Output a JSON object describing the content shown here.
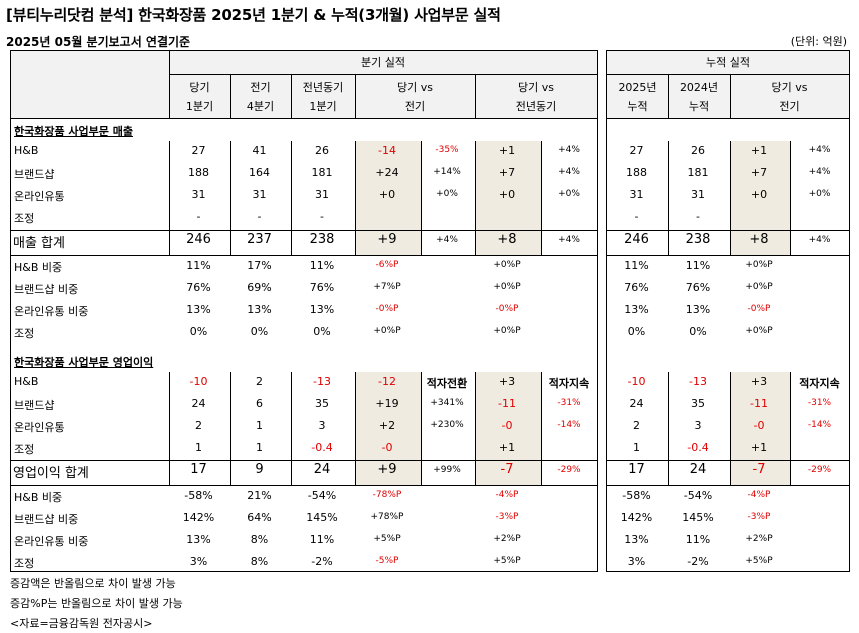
{
  "title": "[뷰티누리닷컴 분석] 한국화장품 2025년 1분기 & 누적(3개월) 사업부문 실적",
  "subtitle": "2025년 05월 분기보고서 연결기준",
  "unit": "(단위: 억원)",
  "groups": {
    "quarter": "분기 실적",
    "cumulative": "누적 실적"
  },
  "headers": {
    "q_cur": "당기\n1분기",
    "q_prev": "전기\n4분기",
    "q_yoy": "전년동기\n1분기",
    "vs_prev": "당기 vs\n전기",
    "vs_yoy": "당기 vs\n전년동기",
    "c_2025": "2025년\n누적",
    "c_2024": "2024년\n누적",
    "c_vs": "당기 vs\n전기"
  },
  "sections": [
    {
      "title": "한국화장품 사업부문 매출",
      "rows": [
        {
          "label": "H&B",
          "cells": [
            "27",
            "41",
            "26",
            "-14",
            "-35%",
            "+1",
            "+4%",
            "27",
            "26",
            "+1",
            "+4%"
          ]
        },
        {
          "label": "브랜드샵",
          "cells": [
            "188",
            "164",
            "181",
            "+24",
            "+14%",
            "+7",
            "+4%",
            "188",
            "181",
            "+7",
            "+4%"
          ]
        },
        {
          "label": "온라인유통",
          "cells": [
            "31",
            "31",
            "31",
            "+0",
            "+0%",
            "+0",
            "+0%",
            "31",
            "31",
            "+0",
            "+0%"
          ]
        },
        {
          "label": "조정",
          "cells": [
            "-",
            "-",
            "-",
            "",
            "",
            "",
            "",
            "-",
            "-",
            "",
            ""
          ]
        }
      ],
      "total": {
        "label": "매출 합계",
        "cells": [
          "246",
          "237",
          "238",
          "+9",
          "+4%",
          "+8",
          "+4%",
          "246",
          "238",
          "+8",
          "+4%"
        ]
      },
      "ratios": [
        {
          "label": "H&B 비중",
          "cells": [
            "11%",
            "17%",
            "11%",
            "-6%P",
            "",
            "+0%P",
            "",
            "11%",
            "11%",
            "+0%P",
            ""
          ]
        },
        {
          "label": "브랜드샵 비중",
          "cells": [
            "76%",
            "69%",
            "76%",
            "+7%P",
            "",
            "+0%P",
            "",
            "76%",
            "76%",
            "+0%P",
            ""
          ]
        },
        {
          "label": "온라인유통 비중",
          "cells": [
            "13%",
            "13%",
            "13%",
            "-0%P",
            "",
            "-0%P",
            "",
            "13%",
            "13%",
            "-0%P",
            ""
          ]
        },
        {
          "label": "조정",
          "cells": [
            "0%",
            "0%",
            "0%",
            "+0%P",
            "",
            "+0%P",
            "",
            "0%",
            "0%",
            "+0%P",
            ""
          ]
        }
      ]
    },
    {
      "title": "한국화장품 사업부문 영업이익",
      "rows": [
        {
          "label": "H&B",
          "cells": [
            "-10",
            "2",
            "-13",
            "-12",
            "적자전환",
            "+3",
            "적자지속",
            "-10",
            "-13",
            "+3",
            "적자지속"
          ]
        },
        {
          "label": "브랜드샵",
          "cells": [
            "24",
            "6",
            "35",
            "+19",
            "+341%",
            "-11",
            "-31%",
            "24",
            "35",
            "-11",
            "-31%"
          ]
        },
        {
          "label": "온라인유통",
          "cells": [
            "2",
            "1",
            "3",
            "+2",
            "+230%",
            "-0",
            "-14%",
            "2",
            "3",
            "-0",
            "-14%"
          ]
        },
        {
          "label": "조정",
          "cells": [
            "1",
            "1",
            "-0.4",
            "-0",
            "",
            "+1",
            "",
            "1",
            "-0.4",
            "+1",
            ""
          ]
        }
      ],
      "total": {
        "label": "영업이익 합계",
        "cells": [
          "17",
          "9",
          "24",
          "+9",
          "+99%",
          "-7",
          "-29%",
          "17",
          "24",
          "-7",
          "-29%"
        ]
      },
      "ratios": [
        {
          "label": "H&B 비중",
          "cells": [
            "-58%",
            "21%",
            "-54%",
            "-78%P",
            "",
            "-4%P",
            "",
            "-58%",
            "-54%",
            "-4%P",
            ""
          ]
        },
        {
          "label": "브랜드샵 비중",
          "cells": [
            "142%",
            "64%",
            "145%",
            "+78%P",
            "",
            "-3%P",
            "",
            "142%",
            "145%",
            "-3%P",
            ""
          ]
        },
        {
          "label": "온라인유통 비중",
          "cells": [
            "13%",
            "8%",
            "11%",
            "+5%P",
            "",
            "+2%P",
            "",
            "13%",
            "11%",
            "+2%P",
            ""
          ]
        },
        {
          "label": "조정",
          "cells": [
            "3%",
            "8%",
            "-2%",
            "-5%P",
            "",
            "+5%P",
            "",
            "3%",
            "-2%",
            "+5%P",
            ""
          ]
        }
      ]
    }
  ],
  "notes": [
    "증감액은 반올림으로 차이 발생 가능",
    "증감%P는 반올림으로 차이 발생 가능",
    "<자료=금융감독원 전자공시>"
  ]
}
